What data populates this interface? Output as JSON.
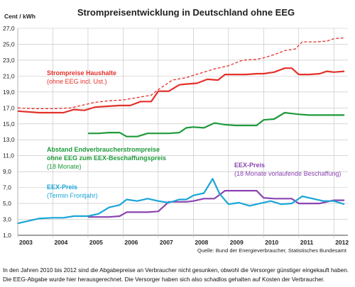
{
  "chart_data": {
    "type": "line",
    "title": "Strompreisentwicklung in Deutschland ohne EEG",
    "ylabel": "Cent / kWh",
    "ylim": [
      1.0,
      27.0
    ],
    "yticks": [
      "1,0",
      "3,0",
      "5,0",
      "7,0",
      "9,0",
      "11,0",
      "13,0",
      "15,0",
      "17,0",
      "19,0",
      "21,0",
      "23,0",
      "25,0",
      "27,0"
    ],
    "xlim": [
      2003.0,
      2012.4
    ],
    "xticks": [
      "2003",
      "2004",
      "2005",
      "2006",
      "2007",
      "2008",
      "2009",
      "2010",
      "2011",
      "2012"
    ],
    "grid": true,
    "series": [
      {
        "name": "Strompreise Haushalte (ohne EEG incl. Ust.)",
        "color": "#e4312b",
        "dash": "dashed",
        "x": [
          2003.0,
          2003.5,
          2004.0,
          2004.5,
          2004.9,
          2005.2,
          2005.6,
          2006.0,
          2006.4,
          2006.8,
          2007.0,
          2007.4,
          2007.8,
          2008.0,
          2008.3,
          2008.6,
          2009.0,
          2009.4,
          2009.8,
          2010.0,
          2010.3,
          2010.6,
          2010.9,
          2011.1,
          2011.5,
          2011.8,
          2012.0,
          2012.3
        ],
        "values": [
          17.0,
          16.9,
          16.9,
          17.0,
          17.4,
          17.7,
          17.9,
          18.0,
          18.3,
          18.6,
          19.3,
          20.5,
          20.8,
          21.1,
          21.5,
          21.9,
          22.3,
          23.0,
          23.1,
          23.3,
          23.7,
          24.2,
          24.4,
          25.3,
          25.3,
          25.4,
          25.7,
          25.8
        ]
      },
      {
        "name": "Strompreise Haushalte",
        "color": "#e4312b",
        "dash": "solid",
        "x": [
          2003.0,
          2003.3,
          2003.6,
          2004.0,
          2004.3,
          2004.6,
          2004.9,
          2005.2,
          2005.5,
          2005.9,
          2006.2,
          2006.5,
          2006.8,
          2007.0,
          2007.3,
          2007.6,
          2007.8,
          2008.1,
          2008.4,
          2008.7,
          2008.9,
          2009.2,
          2009.5,
          2009.8,
          2010.0,
          2010.3,
          2010.6,
          2010.8,
          2011.0,
          2011.3,
          2011.6,
          2011.8,
          2012.0,
          2012.3
        ],
        "values": [
          16.6,
          16.5,
          16.4,
          16.4,
          16.4,
          16.8,
          16.7,
          17.1,
          17.2,
          17.3,
          17.3,
          17.8,
          17.8,
          19.1,
          19.1,
          19.9,
          20.0,
          20.1,
          20.6,
          20.5,
          21.2,
          21.2,
          21.2,
          21.3,
          21.3,
          21.5,
          22.0,
          22.0,
          21.2,
          21.2,
          21.3,
          21.6,
          21.5,
          21.6
        ]
      },
      {
        "name": "Abstand Endverbraucherstrompreise ohne EEG zum EEX-Beschaffungspreis (18 Monate)",
        "color": "#1e9a3b",
        "dash": "solid",
        "x": [
          2005.0,
          2005.3,
          2005.6,
          2005.9,
          2006.1,
          2006.4,
          2006.7,
          2007.0,
          2007.3,
          2007.6,
          2007.8,
          2008.0,
          2008.3,
          2008.6,
          2008.9,
          2009.2,
          2009.5,
          2009.8,
          2010.0,
          2010.3,
          2010.6,
          2010.8,
          2011.0,
          2011.3,
          2011.6,
          2012.0,
          2012.3
        ],
        "values": [
          13.8,
          13.8,
          13.9,
          13.9,
          13.4,
          13.4,
          13.8,
          13.8,
          13.8,
          13.9,
          14.5,
          14.6,
          14.5,
          15.1,
          14.9,
          14.8,
          14.8,
          14.8,
          15.5,
          15.6,
          16.4,
          16.3,
          16.2,
          16.1,
          16.1,
          16.1,
          16.1
        ]
      },
      {
        "name": "EEX-Preis (18 Monate vorlaufende Beschaffung)",
        "color": "#8a44b0",
        "dash": "solid",
        "x": [
          2005.0,
          2005.3,
          2005.6,
          2005.9,
          2006.1,
          2006.4,
          2006.7,
          2007.0,
          2007.3,
          2007.6,
          2007.8,
          2008.0,
          2008.3,
          2008.6,
          2008.9,
          2009.2,
          2009.5,
          2009.8,
          2010.0,
          2010.3,
          2010.6,
          2010.8,
          2011.0,
          2011.3,
          2011.6,
          2012.0,
          2012.3
        ],
        "values": [
          3.3,
          3.3,
          3.3,
          3.4,
          3.9,
          3.9,
          3.9,
          4.0,
          5.2,
          5.2,
          5.2,
          5.3,
          5.6,
          5.6,
          6.6,
          6.6,
          6.6,
          6.6,
          5.7,
          5.6,
          5.6,
          5.6,
          5.0,
          5.0,
          5.0,
          5.4,
          5.4
        ]
      },
      {
        "name": "EEX-Preis (Termin Frontjahr)",
        "color": "#1aa5d8",
        "dash": "solid",
        "x": [
          2003.0,
          2003.3,
          2003.6,
          2004.0,
          2004.3,
          2004.6,
          2005.0,
          2005.3,
          2005.6,
          2005.9,
          2006.1,
          2006.4,
          2006.7,
          2007.0,
          2007.3,
          2007.6,
          2007.8,
          2008.0,
          2008.3,
          2008.55,
          2008.75,
          2009.0,
          2009.3,
          2009.6,
          2009.9,
          2010.2,
          2010.5,
          2010.8,
          2011.1,
          2011.4,
          2011.7,
          2012.0,
          2012.3
        ],
        "values": [
          2.5,
          2.8,
          3.1,
          3.2,
          3.2,
          3.4,
          3.4,
          3.7,
          4.5,
          4.8,
          5.5,
          5.3,
          5.6,
          5.3,
          5.1,
          5.5,
          5.5,
          6.0,
          6.3,
          8.1,
          6.2,
          4.9,
          5.1,
          4.7,
          5.0,
          5.3,
          4.9,
          5.0,
          5.9,
          5.6,
          5.3,
          5.3,
          4.9
        ]
      }
    ],
    "annotations": [
      {
        "text": "Strompreise Haushalte",
        "color": "#e4312b",
        "bold": true
      },
      {
        "text": "(ohne EEG incl. Ust.)",
        "color": "#e4312b",
        "bold": false
      },
      {
        "text": "Abstand Endverbraucherstrompreise",
        "color": "#1e9a3b",
        "bold": true
      },
      {
        "text": "ohne EEG zum EEX-Beschaffungspreis",
        "color": "#1e9a3b",
        "bold": true
      },
      {
        "text": "(18 Monate)",
        "color": "#1e9a3b",
        "bold": false
      },
      {
        "text": "EEX-Preis",
        "color": "#8a44b0",
        "bold": true
      },
      {
        "text": "(18 Monate vorlaufende Beschaffung)",
        "color": "#8a44b0",
        "bold": false
      },
      {
        "text": "EEX-Preis",
        "color": "#1aa5d8",
        "bold": true
      },
      {
        "text": "(Termin Frontjahr)",
        "color": "#1aa5d8",
        "bold": false
      }
    ],
    "source": "Quelle: Bund der Energieverbraucher, Statistisches Bundesamt"
  },
  "footer": {
    "line1": "In den Jahren 2010 bis 2012 sind die Abgabepreise an Verbraucher nicht gesunken, obwohl die Versorger günstiger eingekauft haben.",
    "line2": "Die EEG-Abgabe wurde hier herausgerechnet. Die Versorger haben sich also schadlos gehalten auf Kosten der Verbraucher."
  }
}
